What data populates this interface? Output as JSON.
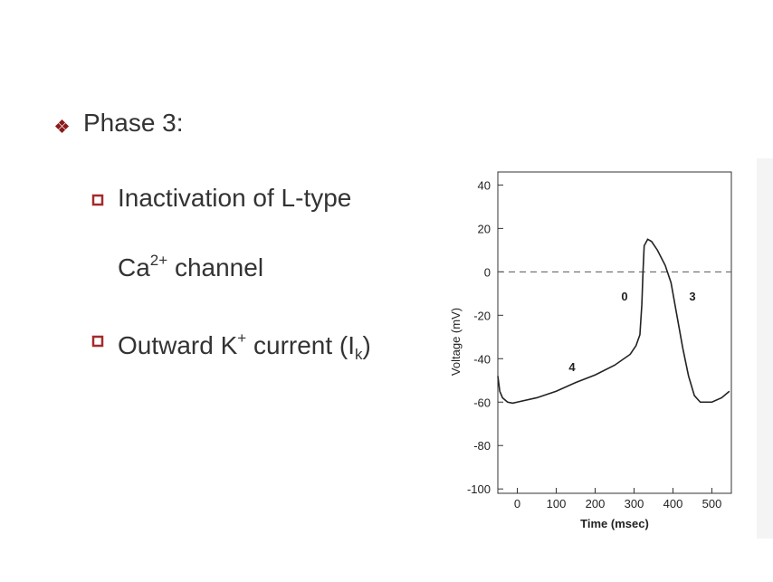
{
  "slide": {
    "heading": "Phase 3:",
    "bullets": [
      {
        "lines": [
          [
            {
              "text": "Inactivation of L-type"
            }
          ],
          [
            {
              "text": "Ca"
            },
            {
              "sup": "2+"
            },
            {
              "text": " channel"
            }
          ]
        ]
      },
      {
        "lines": [
          [
            {
              "text": "Outward K"
            },
            {
              "sup": "+"
            },
            {
              "text": " current (I"
            },
            {
              "sub": "k"
            },
            {
              "text": ")"
            }
          ]
        ]
      }
    ]
  },
  "chart_data": {
    "type": "line",
    "x_label": "Time (msec)",
    "y_label": "Voltage (mV)",
    "xlim": [
      -50,
      550
    ],
    "ylim": [
      -102,
      46
    ],
    "xticks": [
      0,
      100,
      200,
      300,
      400,
      500
    ],
    "yticks": [
      -100,
      -80,
      -60,
      -40,
      -20,
      0,
      20,
      40
    ],
    "reference_line": 0,
    "annotations": [
      "0",
      "3",
      "4"
    ],
    "series": [
      {
        "color": "#222222",
        "x": [
          -50,
          -45,
          -38,
          -25,
          -12,
          0,
          50,
          100,
          150,
          200,
          250,
          290,
          305,
          315,
          320,
          323,
          326,
          335,
          345,
          360,
          380,
          395,
          410,
          425,
          440,
          455,
          470,
          500,
          525,
          545
        ],
        "values": [
          -48,
          -55,
          -58,
          -60,
          -60.5,
          -60,
          -58,
          -55,
          -51,
          -47.5,
          -43,
          -38,
          -34,
          -29,
          -15,
          0,
          12,
          15,
          14,
          10,
          3,
          -5,
          -20,
          -35,
          -48,
          -57,
          -60,
          -60,
          -58,
          -55
        ]
      }
    ]
  }
}
